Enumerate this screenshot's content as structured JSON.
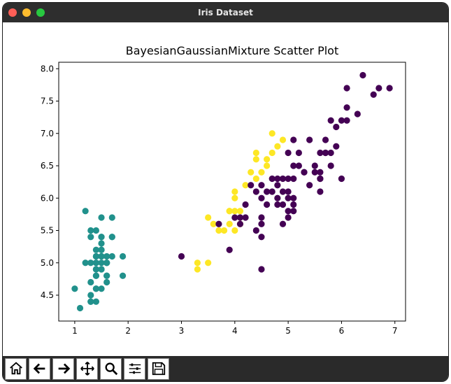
{
  "window": {
    "title": "Iris Dataset"
  },
  "toolbar": {
    "buttons": [
      {
        "name": "home-button",
        "icon": "home-icon"
      },
      {
        "name": "back-button",
        "icon": "arrow-left-icon"
      },
      {
        "name": "forward-button",
        "icon": "arrow-right-icon"
      },
      {
        "name": "pan-button",
        "icon": "move-icon"
      },
      {
        "name": "zoom-button",
        "icon": "magnifier-icon"
      },
      {
        "name": "configure-button",
        "icon": "sliders-icon"
      },
      {
        "name": "save-button",
        "icon": "floppy-icon"
      }
    ]
  },
  "chart_data": {
    "type": "scatter",
    "title": "BayesianGaussianMixture Scatter Plot",
    "xlabel": "",
    "ylabel": "",
    "xlim": [
      0.7,
      7.2
    ],
    "ylim": [
      4.1,
      8.1
    ],
    "xticks": [
      "1",
      "2",
      "3",
      "4",
      "5",
      "6",
      "7"
    ],
    "yticks": [
      "4.5",
      "5.0",
      "5.5",
      "6.0",
      "6.5",
      "7.0",
      "7.5",
      "8.0"
    ],
    "grid": false,
    "colors": {
      "cluster_0": "#440154",
      "cluster_1": "#21918c",
      "cluster_2": "#fde725"
    },
    "series": [
      {
        "color": "#21918c",
        "points": [
          [
            1.4,
            5.1
          ],
          [
            1.4,
            4.9
          ],
          [
            1.3,
            4.7
          ],
          [
            1.5,
            4.6
          ],
          [
            1.4,
            5.0
          ],
          [
            1.7,
            5.4
          ],
          [
            1.4,
            4.6
          ],
          [
            1.5,
            5.0
          ],
          [
            1.4,
            4.4
          ],
          [
            1.5,
            4.9
          ],
          [
            1.5,
            5.4
          ],
          [
            1.6,
            4.8
          ],
          [
            1.4,
            4.8
          ],
          [
            1.1,
            4.3
          ],
          [
            1.2,
            5.8
          ],
          [
            1.5,
            5.7
          ],
          [
            1.3,
            5.4
          ],
          [
            1.4,
            5.1
          ],
          [
            1.7,
            5.7
          ],
          [
            1.5,
            5.1
          ],
          [
            1.7,
            5.4
          ],
          [
            1.5,
            5.1
          ],
          [
            1.0,
            4.6
          ],
          [
            1.7,
            5.1
          ],
          [
            1.9,
            4.8
          ],
          [
            1.6,
            5.0
          ],
          [
            1.6,
            5.0
          ],
          [
            1.5,
            5.2
          ],
          [
            1.4,
            5.2
          ],
          [
            1.6,
            4.7
          ],
          [
            1.6,
            4.8
          ],
          [
            1.5,
            5.4
          ],
          [
            1.5,
            5.2
          ],
          [
            1.4,
            5.5
          ],
          [
            1.5,
            4.9
          ],
          [
            1.2,
            5.0
          ],
          [
            1.3,
            5.5
          ],
          [
            1.4,
            4.9
          ],
          [
            1.3,
            4.4
          ],
          [
            1.5,
            5.1
          ],
          [
            1.3,
            5.0
          ],
          [
            1.3,
            4.5
          ],
          [
            1.3,
            4.4
          ],
          [
            1.6,
            5.0
          ],
          [
            1.9,
            5.1
          ],
          [
            1.4,
            4.8
          ],
          [
            1.6,
            5.1
          ],
          [
            1.4,
            4.6
          ],
          [
            1.5,
            5.3
          ],
          [
            1.4,
            5.0
          ]
        ]
      },
      {
        "color": "#fde725",
        "points": [
          [
            3.3,
            4.9
          ],
          [
            3.3,
            5.0
          ],
          [
            3.5,
            5.0
          ],
          [
            3.5,
            5.7
          ],
          [
            3.6,
            5.6
          ],
          [
            3.7,
            5.5
          ],
          [
            3.8,
            5.5
          ],
          [
            3.9,
            5.6
          ],
          [
            3.9,
            5.8
          ],
          [
            4.0,
            5.8
          ],
          [
            4.0,
            6.0
          ],
          [
            4.0,
            6.1
          ],
          [
            4.0,
            5.5
          ],
          [
            4.1,
            5.8
          ],
          [
            4.2,
            6.2
          ],
          [
            4.3,
            6.4
          ],
          [
            4.4,
            6.3
          ],
          [
            4.4,
            6.6
          ],
          [
            4.4,
            6.7
          ],
          [
            4.5,
            6.4
          ],
          [
            4.6,
            6.6
          ],
          [
            4.6,
            6.5
          ],
          [
            4.7,
            6.7
          ],
          [
            4.7,
            7.0
          ],
          [
            4.8,
            6.8
          ],
          [
            4.9,
            6.9
          ],
          [
            3.9,
            5.8
          ],
          [
            4.1,
            5.6
          ]
        ]
      },
      {
        "color": "#440154",
        "points": [
          [
            3.0,
            5.1
          ],
          [
            3.9,
            5.2
          ],
          [
            3.7,
            5.6
          ],
          [
            4.0,
            5.7
          ],
          [
            4.1,
            5.7
          ],
          [
            4.1,
            5.6
          ],
          [
            4.2,
            5.7
          ],
          [
            4.2,
            5.9
          ],
          [
            4.3,
            6.2
          ],
          [
            4.4,
            5.5
          ],
          [
            4.5,
            4.9
          ],
          [
            4.5,
            5.4
          ],
          [
            4.5,
            5.6
          ],
          [
            4.5,
            5.7
          ],
          [
            4.5,
            6.0
          ],
          [
            4.5,
            6.2
          ],
          [
            4.6,
            6.1
          ],
          [
            4.7,
            6.1
          ],
          [
            4.7,
            6.3
          ],
          [
            4.8,
            5.9
          ],
          [
            4.8,
            6.0
          ],
          [
            4.9,
            5.6
          ],
          [
            4.9,
            6.3
          ],
          [
            4.9,
            6.1
          ],
          [
            5.0,
            6.7
          ],
          [
            5.0,
            6.0
          ],
          [
            5.0,
            5.7
          ],
          [
            5.0,
            6.3
          ],
          [
            5.1,
            6.9
          ],
          [
            5.1,
            5.8
          ],
          [
            5.1,
            6.5
          ],
          [
            5.1,
            6.3
          ],
          [
            5.1,
            6.0
          ],
          [
            5.1,
            5.9
          ],
          [
            4.8,
            6.2
          ],
          [
            5.2,
            6.5
          ],
          [
            5.2,
            6.7
          ],
          [
            5.3,
            6.4
          ],
          [
            5.4,
            6.9
          ],
          [
            5.4,
            6.2
          ],
          [
            5.5,
            6.5
          ],
          [
            5.5,
            6.4
          ],
          [
            5.6,
            6.3
          ],
          [
            5.6,
            6.4
          ],
          [
            5.6,
            6.1
          ],
          [
            5.6,
            6.7
          ],
          [
            5.7,
            6.9
          ],
          [
            5.7,
            6.7
          ],
          [
            5.8,
            6.7
          ],
          [
            5.8,
            7.2
          ],
          [
            5.9,
            6.8
          ],
          [
            5.9,
            7.1
          ],
          [
            6.0,
            6.3
          ],
          [
            6.0,
            7.2
          ],
          [
            6.1,
            7.2
          ],
          [
            6.1,
            7.4
          ],
          [
            6.1,
            7.7
          ],
          [
            6.3,
            7.3
          ],
          [
            6.4,
            7.9
          ],
          [
            6.6,
            7.6
          ],
          [
            6.7,
            7.7
          ],
          [
            6.9,
            7.7
          ],
          [
            5.0,
            6.1
          ],
          [
            5.3,
            6.4
          ],
          [
            5.8,
            6.5
          ],
          [
            4.8,
            6.3
          ],
          [
            4.9,
            5.9
          ],
          [
            5.0,
            5.8
          ],
          [
            5.6,
            6.3
          ],
          [
            5.7,
            6.7
          ],
          [
            4.4,
            6.1
          ],
          [
            4.6,
            5.9
          ]
        ]
      }
    ]
  }
}
